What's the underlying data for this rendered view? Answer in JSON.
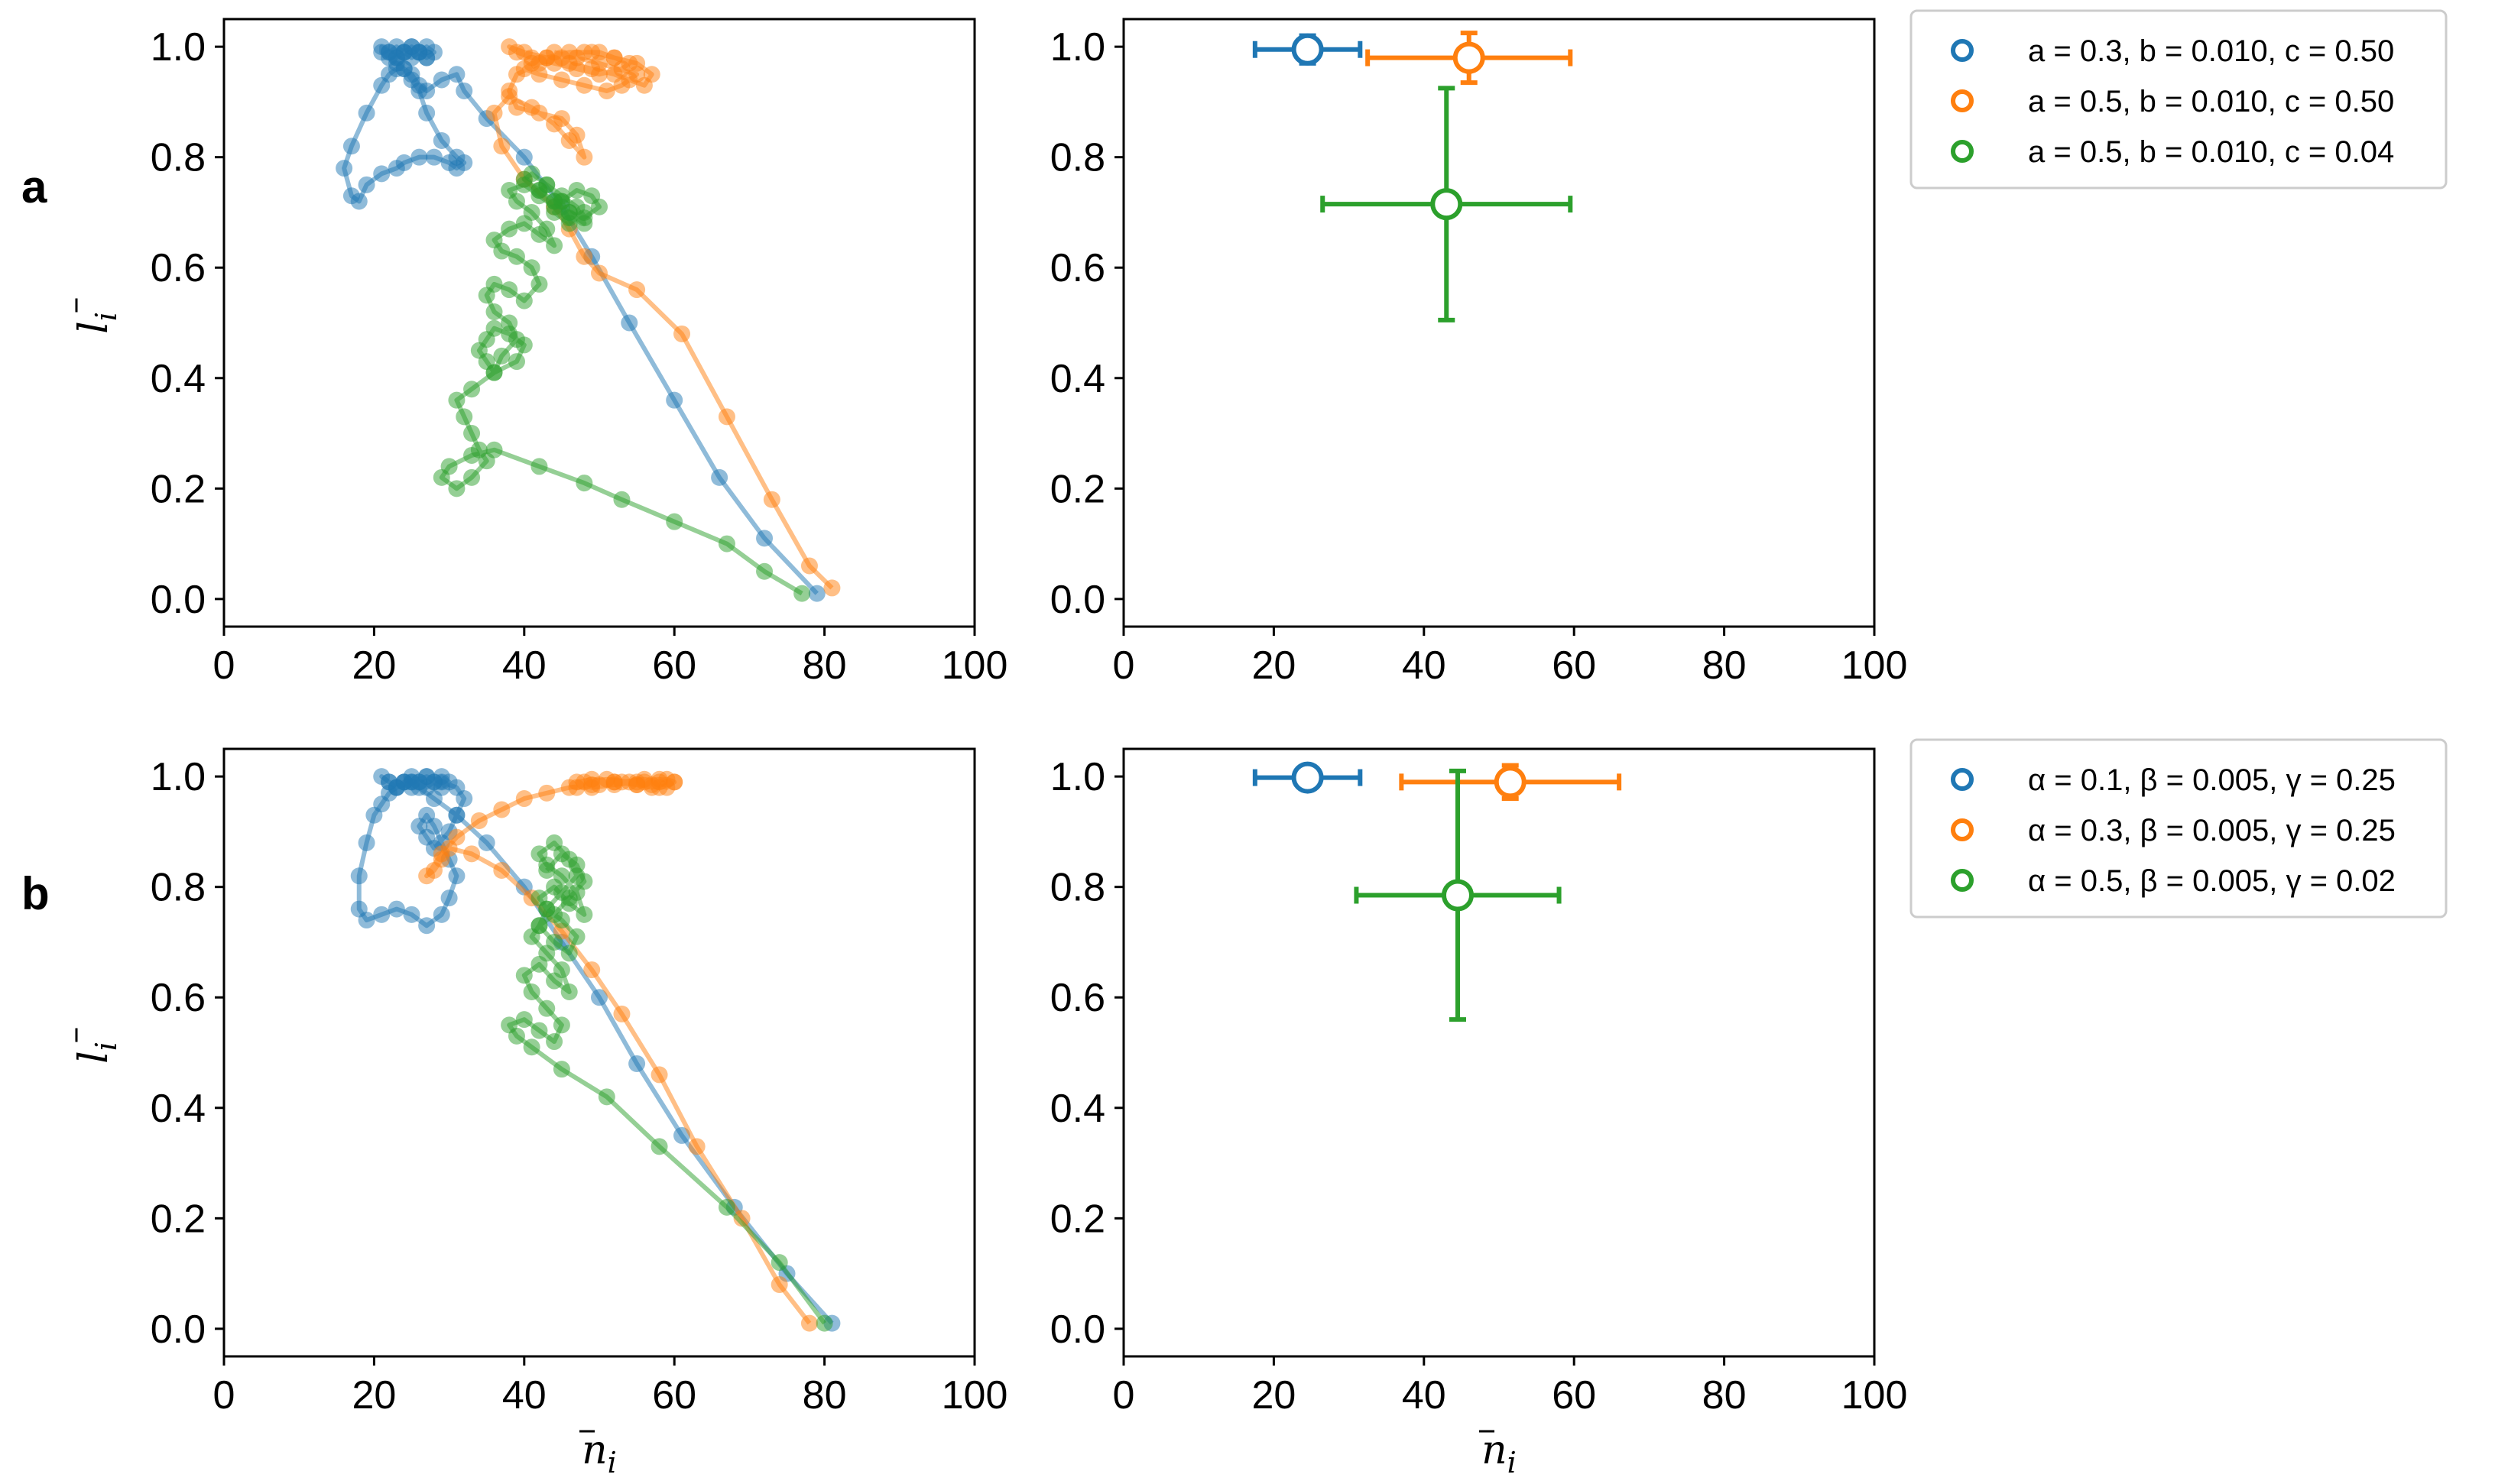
{
  "figure": {
    "panel_labels": [
      "a",
      "b"
    ],
    "colors": {
      "blue": "#1f77b4",
      "orange": "#ff7f0e",
      "green": "#2ca02c"
    }
  },
  "chart_data": [
    {
      "id": "a_trajectories",
      "type": "line",
      "panel": "a",
      "xlabel": "",
      "ylabel_symbol": "l",
      "ylabel_sub": "i",
      "xlim": [
        0,
        100
      ],
      "ylim": [
        -0.05,
        1.05
      ],
      "xticks": [
        0,
        20,
        40,
        60,
        80,
        100
      ],
      "yticks": [
        "0.0",
        "0.2",
        "0.4",
        "0.6",
        "0.8",
        "1.0"
      ],
      "series": [
        {
          "name": "blue",
          "color": "#1f77b4",
          "x": [
            79,
            72,
            66,
            60,
            54,
            49,
            45,
            40,
            35,
            32,
            31,
            29,
            27,
            26,
            25,
            24,
            23,
            22,
            21,
            19,
            17,
            16,
            17,
            18,
            19,
            21,
            23,
            24,
            26,
            28,
            30,
            31,
            32,
            31,
            29,
            27,
            26,
            25,
            24,
            23,
            22,
            21,
            21,
            22,
            23,
            24,
            25,
            26,
            27,
            28,
            27,
            26,
            25,
            24,
            23,
            22,
            23,
            24,
            25,
            26,
            27
          ],
          "y": [
            0.01,
            0.11,
            0.22,
            0.36,
            0.5,
            0.62,
            0.71,
            0.8,
            0.87,
            0.92,
            0.95,
            0.94,
            0.92,
            0.93,
            0.95,
            0.96,
            0.96,
            0.95,
            0.93,
            0.88,
            0.82,
            0.78,
            0.73,
            0.72,
            0.75,
            0.77,
            0.78,
            0.79,
            0.8,
            0.8,
            0.79,
            0.78,
            0.79,
            0.8,
            0.83,
            0.88,
            0.92,
            0.94,
            0.96,
            0.97,
            0.98,
            0.99,
            1.0,
            0.99,
            0.98,
            0.99,
            1.0,
            0.99,
            0.98,
            0.99,
            1.0,
            0.99,
            0.98,
            0.99,
            1.0,
            0.99,
            0.98,
            0.99,
            1.0,
            0.99,
            0.98
          ]
        },
        {
          "name": "orange",
          "color": "#ff7f0e",
          "x": [
            81,
            78,
            73,
            67,
            61,
            55,
            50,
            48,
            46,
            44,
            40,
            37,
            36,
            38,
            41,
            44,
            46,
            48,
            47,
            45,
            42,
            39,
            38,
            39,
            42,
            45,
            48,
            50,
            52,
            54,
            53,
            50,
            47,
            44,
            41,
            39,
            38,
            40,
            43,
            46,
            49,
            52,
            54,
            56,
            57,
            55,
            52,
            49,
            46,
            43,
            41,
            40,
            42,
            45,
            48,
            51,
            53,
            55,
            50,
            47,
            44
          ],
          "y": [
            0.02,
            0.06,
            0.18,
            0.33,
            0.48,
            0.56,
            0.59,
            0.62,
            0.67,
            0.71,
            0.76,
            0.82,
            0.88,
            0.91,
            0.89,
            0.86,
            0.83,
            0.8,
            0.84,
            0.87,
            0.88,
            0.89,
            0.92,
            0.95,
            0.97,
            0.98,
            0.99,
            0.99,
            0.98,
            0.97,
            0.96,
            0.95,
            0.96,
            0.97,
            0.98,
            0.99,
            1.0,
            0.99,
            0.98,
            0.97,
            0.96,
            0.95,
            0.94,
            0.93,
            0.95,
            0.97,
            0.98,
            0.99,
            0.99,
            0.98,
            0.97,
            0.96,
            0.95,
            0.94,
            0.93,
            0.92,
            0.93,
            0.95,
            0.97,
            0.98,
            0.99
          ]
        },
        {
          "name": "green",
          "color": "#2ca02c",
          "x": [
            77,
            72,
            67,
            60,
            53,
            48,
            42,
            36,
            33,
            30,
            29,
            31,
            33,
            35,
            34,
            33,
            32,
            31,
            33,
            36,
            39,
            40,
            38,
            36,
            35,
            34,
            35,
            36,
            37,
            39,
            38,
            36,
            35,
            36,
            38,
            40,
            42,
            41,
            39,
            37,
            36,
            38,
            40,
            42,
            44,
            43,
            41,
            39,
            38,
            40,
            42,
            44,
            46,
            45,
            43,
            41,
            40,
            42,
            44,
            46,
            48,
            47,
            45,
            43,
            42,
            44,
            46,
            48,
            50,
            49,
            47,
            45,
            44,
            46,
            48
          ],
          "y": [
            0.01,
            0.05,
            0.1,
            0.14,
            0.18,
            0.21,
            0.24,
            0.27,
            0.26,
            0.24,
            0.22,
            0.2,
            0.22,
            0.25,
            0.27,
            0.3,
            0.33,
            0.36,
            0.38,
            0.41,
            0.43,
            0.46,
            0.48,
            0.49,
            0.47,
            0.45,
            0.43,
            0.41,
            0.44,
            0.47,
            0.5,
            0.52,
            0.55,
            0.57,
            0.56,
            0.54,
            0.57,
            0.6,
            0.62,
            0.63,
            0.65,
            0.67,
            0.68,
            0.66,
            0.64,
            0.67,
            0.7,
            0.72,
            0.74,
            0.75,
            0.73,
            0.71,
            0.69,
            0.72,
            0.75,
            0.77,
            0.76,
            0.74,
            0.72,
            0.7,
            0.68,
            0.71,
            0.73,
            0.75,
            0.74,
            0.72,
            0.7,
            0.69,
            0.71,
            0.73,
            0.74,
            0.72,
            0.7,
            0.68,
            0.7
          ]
        }
      ]
    },
    {
      "id": "a_summary",
      "type": "scatter",
      "panel": "a",
      "xlabel": "",
      "xlim": [
        0,
        100
      ],
      "ylim": [
        -0.05,
        1.05
      ],
      "xticks": [
        0,
        20,
        40,
        60,
        80,
        100
      ],
      "yticks": [
        "0.0",
        "0.2",
        "0.4",
        "0.6",
        "0.8",
        "1.0"
      ],
      "points": [
        {
          "color": "#1f77b4",
          "x": 24.5,
          "y": 0.995,
          "xerr": 7.0,
          "yerr": 0.025
        },
        {
          "color": "#ff7f0e",
          "x": 46.0,
          "y": 0.98,
          "xerr": 13.5,
          "yerr": 0.045
        },
        {
          "color": "#2ca02c",
          "x": 43.0,
          "y": 0.715,
          "xerr": 16.5,
          "yerr": 0.21
        }
      ],
      "legend": [
        {
          "label": "a = 0.3, b = 0.010, c = 0.50",
          "color": "#1f77b4"
        },
        {
          "label": "a = 0.5, b = 0.010, c = 0.50",
          "color": "#ff7f0e"
        },
        {
          "label": "a = 0.5, b = 0.010, c = 0.04",
          "color": "#2ca02c"
        }
      ]
    },
    {
      "id": "b_trajectories",
      "type": "line",
      "panel": "b",
      "xlabel_symbol": "n",
      "xlabel_sub": "i",
      "ylabel_symbol": "l",
      "ylabel_sub": "i",
      "xlim": [
        0,
        100
      ],
      "ylim": [
        -0.05,
        1.05
      ],
      "xticks": [
        0,
        20,
        40,
        60,
        80,
        100
      ],
      "yticks": [
        "0.0",
        "0.2",
        "0.4",
        "0.6",
        "0.8",
        "1.0"
      ],
      "series": [
        {
          "name": "blue",
          "color": "#1f77b4",
          "x": [
            81,
            75,
            68,
            61,
            55,
            50,
            45,
            40,
            35,
            31,
            28,
            26,
            25,
            24,
            23,
            22,
            21,
            20,
            19,
            18,
            18,
            19,
            21,
            23,
            25,
            27,
            29,
            30,
            31,
            30,
            29,
            28,
            27,
            26,
            27,
            28,
            30,
            31,
            32,
            31,
            29,
            27,
            25,
            23,
            22,
            21,
            22,
            23,
            24,
            25,
            26,
            27,
            28,
            29,
            30,
            29,
            28,
            27,
            26,
            25,
            24
          ],
          "y": [
            0.01,
            0.1,
            0.22,
            0.35,
            0.48,
            0.6,
            0.7,
            0.8,
            0.88,
            0.93,
            0.96,
            0.98,
            0.99,
            0.99,
            0.98,
            0.97,
            0.95,
            0.93,
            0.88,
            0.82,
            0.76,
            0.74,
            0.75,
            0.76,
            0.75,
            0.73,
            0.75,
            0.78,
            0.82,
            0.85,
            0.88,
            0.91,
            0.93,
            0.91,
            0.89,
            0.87,
            0.9,
            0.93,
            0.96,
            0.98,
            0.99,
            1.0,
            0.99,
            0.98,
            0.99,
            1.0,
            0.99,
            0.98,
            0.99,
            1.0,
            0.99,
            0.98,
            0.99,
            1.0,
            0.99,
            0.98,
            0.99,
            1.0,
            0.99,
            0.98,
            0.99
          ]
        },
        {
          "name": "orange",
          "color": "#ff7f0e",
          "x": [
            78,
            74,
            69,
            63,
            58,
            53,
            49,
            45,
            41,
            37,
            33,
            30,
            29,
            28,
            27,
            29,
            31,
            34,
            37,
            40,
            43,
            46,
            49,
            52,
            55,
            57,
            58,
            56,
            53,
            50,
            47,
            48,
            51,
            54,
            57,
            59,
            60,
            58,
            55,
            52,
            49,
            47,
            49,
            52,
            55,
            58,
            60,
            59,
            56
          ],
          "y": [
            0.01,
            0.08,
            0.2,
            0.33,
            0.46,
            0.57,
            0.65,
            0.72,
            0.78,
            0.83,
            0.86,
            0.87,
            0.85,
            0.83,
            0.82,
            0.86,
            0.89,
            0.92,
            0.94,
            0.96,
            0.97,
            0.98,
            0.985,
            0.99,
            0.985,
            0.98,
            0.99,
            0.995,
            0.99,
            0.985,
            0.98,
            0.99,
            0.995,
            0.99,
            0.985,
            0.98,
            0.99,
            0.995,
            0.99,
            0.985,
            0.98,
            0.99,
            0.995,
            0.99,
            0.985,
            0.98,
            0.99,
            0.995,
            0.99
          ]
        },
        {
          "name": "green",
          "color": "#2ca02c",
          "x": [
            80,
            74,
            67,
            58,
            51,
            45,
            41,
            39,
            38,
            40,
            42,
            44,
            45,
            43,
            41,
            40,
            42,
            44,
            46,
            45,
            43,
            41,
            42,
            44,
            46,
            47,
            45,
            43,
            42,
            44,
            46,
            48,
            47,
            45,
            43,
            42,
            44,
            46,
            47,
            45,
            43,
            42,
            44,
            46,
            48,
            47,
            45,
            43
          ],
          "y": [
            0.01,
            0.12,
            0.22,
            0.33,
            0.42,
            0.47,
            0.51,
            0.53,
            0.55,
            0.56,
            0.54,
            0.52,
            0.55,
            0.58,
            0.61,
            0.64,
            0.66,
            0.63,
            0.61,
            0.65,
            0.68,
            0.71,
            0.73,
            0.7,
            0.68,
            0.71,
            0.74,
            0.76,
            0.78,
            0.8,
            0.77,
            0.75,
            0.79,
            0.82,
            0.84,
            0.86,
            0.88,
            0.85,
            0.82,
            0.79,
            0.76,
            0.73,
            0.75,
            0.78,
            0.81,
            0.84,
            0.86,
            0.83
          ]
        }
      ]
    },
    {
      "id": "b_summary",
      "type": "scatter",
      "panel": "b",
      "xlabel_symbol": "n",
      "xlabel_sub": "i",
      "xlim": [
        0,
        100
      ],
      "ylim": [
        -0.05,
        1.05
      ],
      "xticks": [
        0,
        20,
        40,
        60,
        80,
        100
      ],
      "yticks": [
        "0.0",
        "0.2",
        "0.4",
        "0.6",
        "0.8",
        "1.0"
      ],
      "points": [
        {
          "color": "#1f77b4",
          "x": 24.5,
          "y": 0.998,
          "xerr": 7.0,
          "yerr": 0.012
        },
        {
          "color": "#ff7f0e",
          "x": 51.5,
          "y": 0.99,
          "xerr": 14.5,
          "yerr": 0.03
        },
        {
          "color": "#2ca02c",
          "x": 44.5,
          "y": 0.785,
          "xerr": 13.5,
          "yerr": 0.225
        }
      ],
      "legend": [
        {
          "label": "α = 0.1, β = 0.005, γ = 0.25",
          "color": "#1f77b4"
        },
        {
          "label": "α = 0.3, β = 0.005, γ = 0.25",
          "color": "#ff7f0e"
        },
        {
          "label": "α = 0.5, β = 0.005, γ = 0.02",
          "color": "#2ca02c"
        }
      ]
    }
  ]
}
